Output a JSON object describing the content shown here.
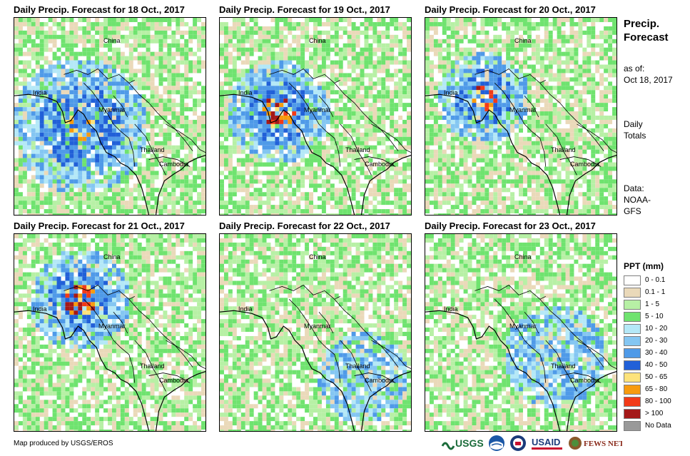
{
  "panels": [
    {
      "title": "Daily Precip. Forecast for 18 Oct., 2017",
      "intensity": "moderate"
    },
    {
      "title": "Daily Precip. Forecast for 19 Oct., 2017",
      "intensity": "heavy"
    },
    {
      "title": "Daily Precip. Forecast for 20 Oct., 2017",
      "intensity": "heavy"
    },
    {
      "title": "Daily Precip. Forecast for 21 Oct., 2017",
      "intensity": "heavy"
    },
    {
      "title": "Daily Precip. Forecast for 22 Oct., 2017",
      "intensity": "light"
    },
    {
      "title": "Daily Precip. Forecast for 23 Oct., 2017",
      "intensity": "light"
    }
  ],
  "places": {
    "china": "China",
    "india": "India",
    "myanmar": "Myanmar",
    "thailand": "Thailand",
    "cambodia": "Cambodia"
  },
  "side": {
    "title_line1": "Precip.",
    "title_line2": "Forecast",
    "asof_line1": "as of:",
    "asof_line2": "Oct 18, 2017",
    "totals_line1": "Daily",
    "totals_line2": "Totals",
    "data_line1": "Data:",
    "data_line2": "NOAA-",
    "data_line3": "GFS"
  },
  "legend": {
    "title": "PPT (mm)",
    "items": [
      {
        "label": "0 - 0.1",
        "color": "#ffffff"
      },
      {
        "label": "0.1 - 1",
        "color": "#ead9b9"
      },
      {
        "label": "1 - 5",
        "color": "#b7f0a5"
      },
      {
        "label": "5 - 10",
        "color": "#6fe36f"
      },
      {
        "label": "10 - 20",
        "color": "#b4e8f7"
      },
      {
        "label": "20 - 30",
        "color": "#84c6f2"
      },
      {
        "label": "30 - 40",
        "color": "#4f9ae8"
      },
      {
        "label": "40 - 50",
        "color": "#2160d8"
      },
      {
        "label": "50 - 65",
        "color": "#fde37b"
      },
      {
        "label": "65 - 80",
        "color": "#f79b0e"
      },
      {
        "label": "80 - 100",
        "color": "#f23a17"
      },
      {
        "label": "> 100",
        "color": "#a41818"
      },
      {
        "label": "No Data",
        "color": "#999999"
      }
    ]
  },
  "credit": "Map produced by USGS/EROS",
  "logos": {
    "usgs": "USGS",
    "usaid": "USAID",
    "fewsnet": "FEWS NET"
  }
}
